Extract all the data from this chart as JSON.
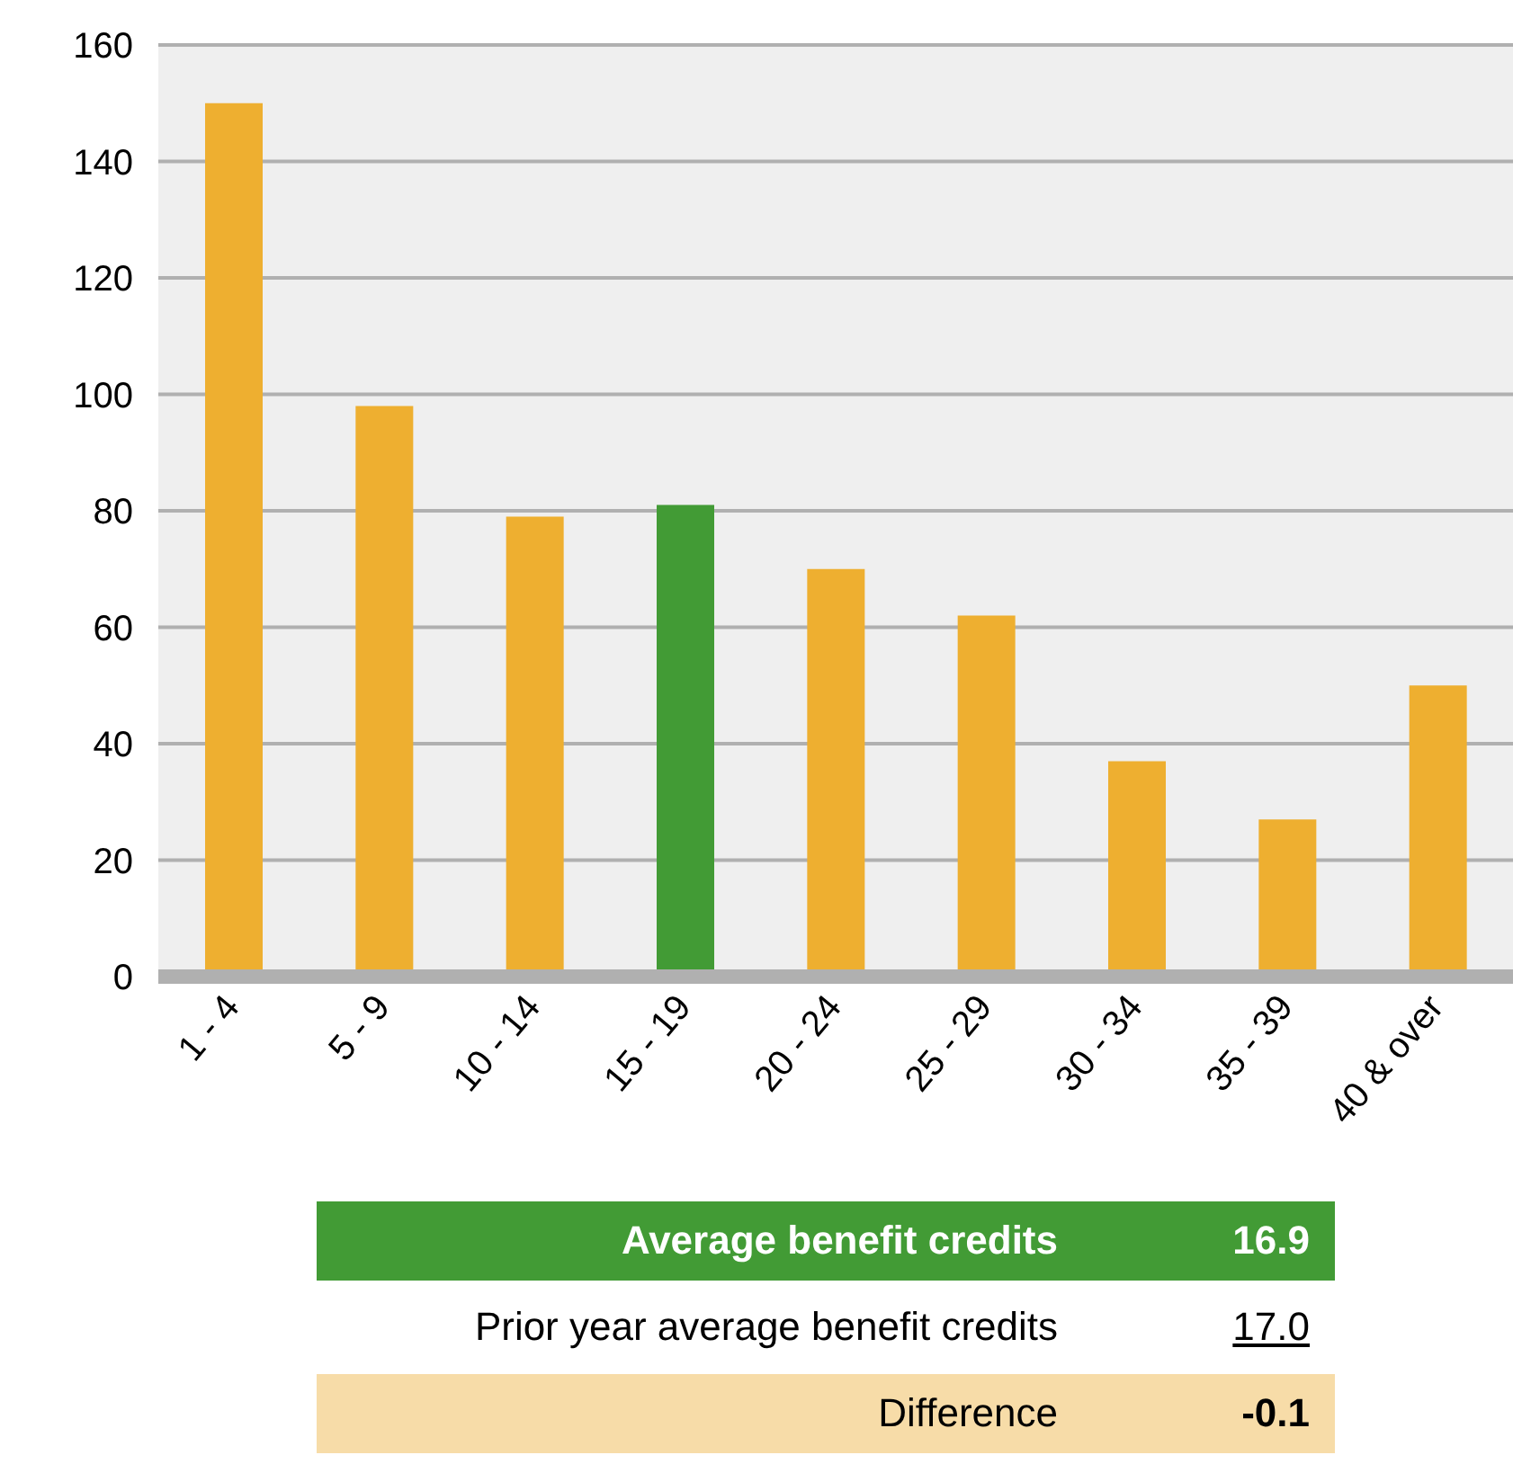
{
  "chart_data": {
    "type": "bar",
    "categories": [
      "1 - 4",
      "5 - 9",
      "10 - 14",
      "15 - 19",
      "20 - 24",
      "25 - 29",
      "30 - 34",
      "35 - 39",
      "40 & over"
    ],
    "values": [
      150,
      98,
      79,
      81,
      70,
      62,
      37,
      27,
      50
    ],
    "colors": [
      "#eeaf30",
      "#eeaf30",
      "#eeaf30",
      "#429b35",
      "#eeaf30",
      "#eeaf30",
      "#eeaf30",
      "#eeaf30",
      "#eeaf30"
    ],
    "ylim": [
      0,
      160
    ],
    "yticks": [
      0,
      20,
      40,
      60,
      80,
      100,
      120,
      140,
      160
    ],
    "grid": "y",
    "annotations": [
      "Average benefit credits",
      "16.9",
      "Prior year average benefit credits",
      "17.0",
      "Difference",
      "-0.1"
    ]
  }
}
